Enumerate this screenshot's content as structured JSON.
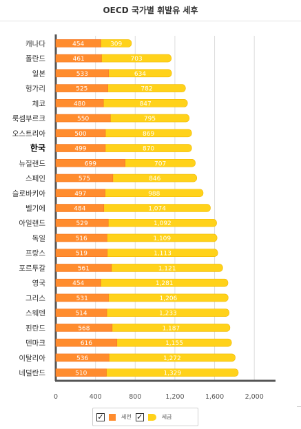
{
  "title": "OECD 국가별 휘발유 세후",
  "colors": {
    "series1": "#ff8c2e",
    "series1_edge": "#f47420",
    "series2": "#ffd21a",
    "series2_edge": "#f0b800",
    "axis": "#555555",
    "grid": "#dddddd"
  },
  "legend": {
    "items": [
      {
        "check": "✓",
        "label": "세전",
        "icon": "square-swatch-icon"
      },
      {
        "check": "✓",
        "label": "세금",
        "icon": "tag-swatch-icon"
      }
    ]
  },
  "chart_data": {
    "type": "bar",
    "orientation": "horizontal",
    "stacked": true,
    "title": "OECD 국가별 휘발유 세후",
    "categories": [
      "캐나다",
      "폴란드",
      "일본",
      "헝가리",
      "체코",
      "룩셈부르크",
      "오스트리아",
      "한국",
      "뉴질랜드",
      "스페인",
      "슬로바키아",
      "벨기에",
      "아일랜드",
      "독일",
      "프랑스",
      "포르투갈",
      "영국",
      "그리스",
      "스웨덴",
      "핀란드",
      "덴마크",
      "이탈리아",
      "네덜란드"
    ],
    "highlight_category": "한국",
    "series": [
      {
        "name": "세전",
        "values": [
          454,
          461,
          533,
          525,
          480,
          550,
          500,
          499,
          699,
          575,
          497,
          484,
          529,
          516,
          519,
          561,
          454,
          531,
          514,
          568,
          616,
          536,
          510
        ],
        "labels": [
          "454",
          "461",
          "533",
          "525",
          "480",
          "550",
          "500",
          "499",
          "699",
          "575",
          "497",
          "484",
          "529",
          "516",
          "519",
          "561",
          "454",
          "531",
          "514",
          "568",
          "616",
          "536",
          "510"
        ]
      },
      {
        "name": "세금",
        "values": [
          309,
          703,
          634,
          782,
          847,
          795,
          869,
          870,
          707,
          846,
          988,
          1074,
          1092,
          1109,
          1113,
          1121,
          1281,
          1206,
          1233,
          1187,
          1155,
          1272,
          1329
        ],
        "labels": [
          "309",
          "703",
          "634",
          "782",
          "847",
          "795",
          "869",
          "870",
          "707",
          "846",
          "988",
          "1,074",
          "1,092",
          "1,109",
          "1,113",
          "1,121",
          "1,281",
          "1,206",
          "1,233",
          "1,187",
          "1,155",
          "1,272",
          "1,329"
        ]
      }
    ],
    "xlim": [
      0,
      2200
    ],
    "xticks": [
      0,
      400,
      800,
      1200,
      1600,
      2000
    ],
    "xtick_labels": [
      "0",
      "400",
      "800",
      "1,200",
      "1,600",
      "2,000"
    ],
    "grid": true,
    "legend_position": "bottom-center"
  }
}
